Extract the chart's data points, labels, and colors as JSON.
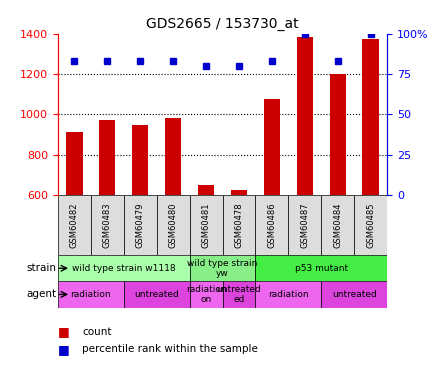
{
  "title": "GDS2665 / 153730_at",
  "samples": [
    "GSM60482",
    "GSM60483",
    "GSM60479",
    "GSM60480",
    "GSM60481",
    "GSM60478",
    "GSM60486",
    "GSM60487",
    "GSM60484",
    "GSM60485"
  ],
  "count_values": [
    910,
    970,
    945,
    980,
    648,
    625,
    1075,
    1385,
    1200,
    1375
  ],
  "percentile_values": [
    83,
    83,
    83,
    83,
    80,
    80,
    83,
    100,
    83,
    100
  ],
  "ylim_left": [
    600,
    1400
  ],
  "ylim_right": [
    0,
    100
  ],
  "yticks_left": [
    600,
    800,
    1000,
    1200,
    1400
  ],
  "yticks_right": [
    0,
    25,
    50,
    75,
    100
  ],
  "bar_color": "#cc0000",
  "dot_color": "#0000cc",
  "strain_data": [
    {
      "s": 0,
      "e": 4,
      "label": "wild type strain w1118",
      "color": "#aaffaa"
    },
    {
      "s": 4,
      "e": 6,
      "label": "wild type strain\nyw",
      "color": "#88ee88"
    },
    {
      "s": 6,
      "e": 10,
      "label": "p53 mutant",
      "color": "#44ee44"
    }
  ],
  "agent_data": [
    {
      "s": 0,
      "e": 2,
      "label": "radiation",
      "color": "#ee66ee"
    },
    {
      "s": 2,
      "e": 4,
      "label": "untreated",
      "color": "#dd44dd"
    },
    {
      "s": 4,
      "e": 5,
      "label": "radiation\non",
      "color": "#ee66ee"
    },
    {
      "s": 5,
      "e": 6,
      "label": "untreated\ned",
      "color": "#dd44dd"
    },
    {
      "s": 6,
      "e": 8,
      "label": "radiation",
      "color": "#ee66ee"
    },
    {
      "s": 8,
      "e": 10,
      "label": "untreated",
      "color": "#dd44dd"
    }
  ],
  "legend_count_label": "count",
  "legend_pct_label": "percentile rank within the sample",
  "strain_label": "strain",
  "agent_label": "agent",
  "sample_box_color": "#dddddd",
  "grid_ticks": [
    800,
    1000,
    1200
  ]
}
